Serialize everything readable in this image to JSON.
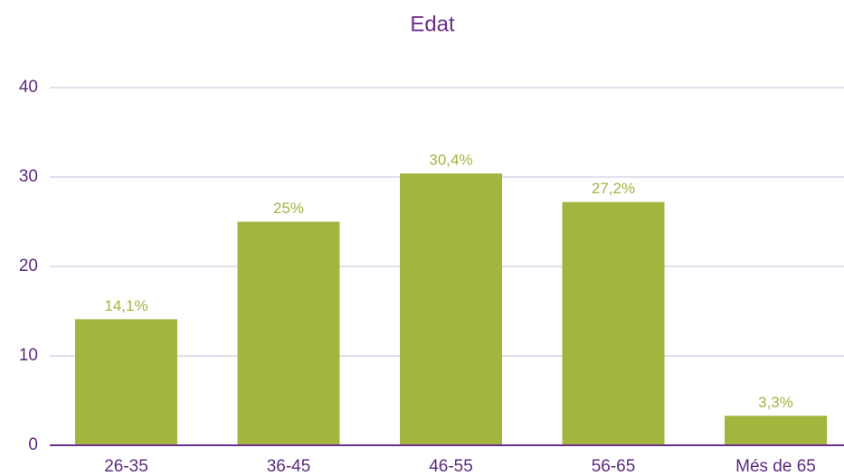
{
  "chart_data": {
    "type": "bar",
    "title": "Edat",
    "categories": [
      "26-35",
      "36-45",
      "46-55",
      "56-65",
      "Més de 65"
    ],
    "values": [
      14.1,
      25,
      30.4,
      27.2,
      3.3
    ],
    "value_labels": [
      "14,1%",
      "25%",
      "30,4%",
      "27,2%",
      "3,3%"
    ],
    "color": "#a3b43f",
    "ylim": [
      0,
      40
    ],
    "yticks": [
      0,
      10,
      20,
      30,
      40
    ],
    "grid": true
  }
}
